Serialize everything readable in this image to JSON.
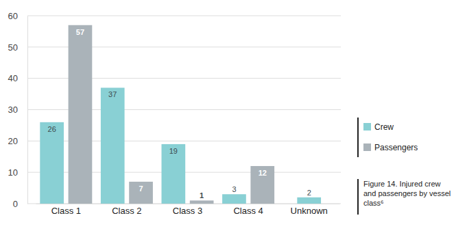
{
  "chart_data": {
    "type": "bar",
    "title": "Figure 14. Injured crew and passengers by vessel class⁶",
    "categories": [
      "Class 1",
      "Class 2",
      "Class 3",
      "Class 4",
      "Unknown"
    ],
    "series": [
      {
        "name": "Crew",
        "color": "#89d0d4",
        "values": [
          26,
          37,
          19,
          3,
          2
        ]
      },
      {
        "name": "Passengers",
        "color": "#aab3b9",
        "values": [
          57,
          7,
          1,
          12,
          null
        ]
      }
    ],
    "ylim": [
      0,
      60
    ],
    "yticks": [
      0,
      10,
      20,
      30,
      40,
      50,
      60
    ],
    "grid": true,
    "legend": "right",
    "data_labels": true
  }
}
